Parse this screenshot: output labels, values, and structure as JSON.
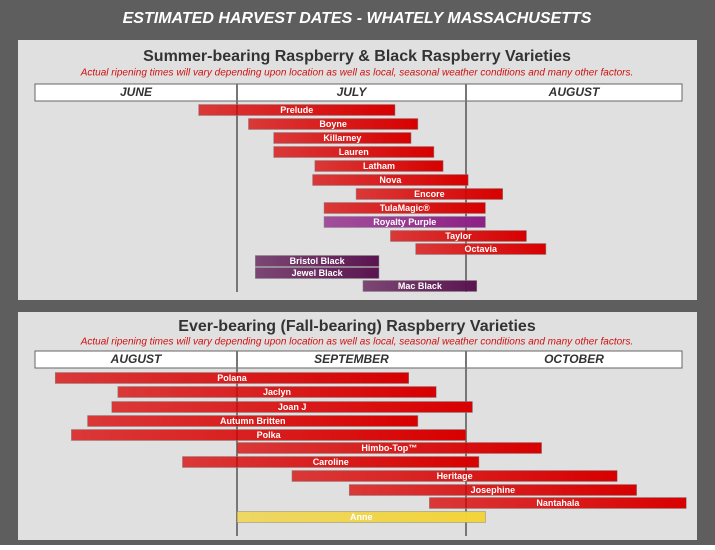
{
  "title": "ESTIMATED HARVEST DATES  -  WHATELY MASSACHUSETTS",
  "chart_data": [
    {
      "type": "gantt",
      "title": "Summer-bearing Raspberry & Black Raspberry Varieties",
      "subtitle": "Actual ripening times will vary depending upon location as well as local, seasonal weather conditions and many other factors.",
      "categories": [
        "JUNE",
        "JULY",
        "AUGUST"
      ],
      "xlim": [
        0,
        3
      ],
      "tasks": [
        {
          "name": "Prelude",
          "start": 0.81,
          "end": 1.69,
          "color": "#d80000"
        },
        {
          "name": "Boyne",
          "start": 1.05,
          "end": 1.79,
          "color": "#d80000"
        },
        {
          "name": "Killarney",
          "start": 1.16,
          "end": 1.76,
          "color": "#d80000"
        },
        {
          "name": "Lauren",
          "start": 1.16,
          "end": 1.86,
          "color": "#d80000"
        },
        {
          "name": "Latham",
          "start": 1.34,
          "end": 1.9,
          "color": "#d80000"
        },
        {
          "name": "Nova",
          "start": 1.33,
          "end": 2.01,
          "color": "#d80000"
        },
        {
          "name": "Encore",
          "start": 1.52,
          "end": 2.17,
          "color": "#d80000"
        },
        {
          "name": "TulaMagic®",
          "start": 1.38,
          "end": 2.09,
          "color": "#d80000"
        },
        {
          "name": "Royalty Purple",
          "start": 1.38,
          "end": 2.09,
          "color": "#8e1f86"
        },
        {
          "name": "Taylor",
          "start": 1.67,
          "end": 2.28,
          "color": "#d80000"
        },
        {
          "name": "Octavia",
          "start": 1.78,
          "end": 2.37,
          "color": "#d80000"
        },
        {
          "name": "Bristol Black",
          "start": 1.08,
          "end": 1.62,
          "color": "#5a1450"
        },
        {
          "name": "Jewel Black",
          "start": 1.08,
          "end": 1.62,
          "color": "#5a1450"
        },
        {
          "name": "Mac Black",
          "start": 1.55,
          "end": 2.05,
          "color": "#5a1450"
        }
      ]
    },
    {
      "type": "gantt",
      "title": "Ever-bearing (Fall-bearing) Raspberry Varieties",
      "subtitle": "Actual ripening times will vary depending upon location as well as local, seasonal weather conditions and many other factors.",
      "categories": [
        "AUGUST",
        "SEPTEMBER",
        "OCTOBER"
      ],
      "xlim": [
        0,
        3
      ],
      "tasks": [
        {
          "name": "Polana",
          "start": 0.1,
          "end": 1.75,
          "color": "#d80000"
        },
        {
          "name": "Jaclyn",
          "start": 0.41,
          "end": 1.87,
          "color": "#d80000"
        },
        {
          "name": "Joan J",
          "start": 0.38,
          "end": 2.03,
          "color": "#d80000"
        },
        {
          "name": "Autumn Britten",
          "start": 0.26,
          "end": 1.79,
          "color": "#d80000"
        },
        {
          "name": "Polka",
          "start": 0.18,
          "end": 2.0,
          "color": "#d80000"
        },
        {
          "name": "Himbo-Top™",
          "start": 1.0,
          "end": 2.35,
          "color": "#d80000"
        },
        {
          "name": "Caroline",
          "start": 0.73,
          "end": 2.06,
          "color": "#d80000"
        },
        {
          "name": "Heritage",
          "start": 1.24,
          "end": 2.7,
          "color": "#d80000"
        },
        {
          "name": "Josephine",
          "start": 1.49,
          "end": 2.79,
          "color": "#d80000"
        },
        {
          "name": "Nantahala",
          "start": 1.84,
          "end": 3.02,
          "color": "#d80000"
        },
        {
          "name": "Anne",
          "start": 1.0,
          "end": 2.09,
          "color": "#f2d43a"
        }
      ]
    }
  ]
}
